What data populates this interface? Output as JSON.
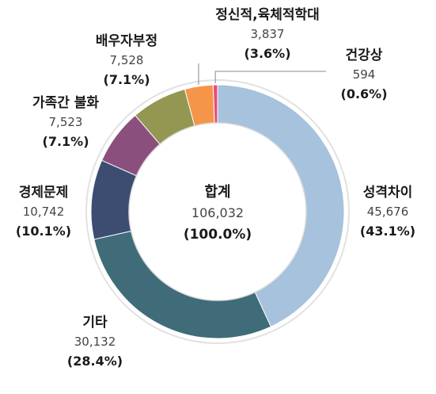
{
  "chart_data": {
    "type": "pie",
    "variant": "donut",
    "title": "",
    "categories": [
      "성격차이",
      "기타",
      "경제문제",
      "가족간 불화",
      "배우자부정",
      "정신적,육체적학대",
      "건강상"
    ],
    "values": [
      45676,
      30132,
      10742,
      7523,
      7528,
      3837,
      594
    ],
    "value_labels": [
      "45,676",
      "30,132",
      "10,742",
      "7,523",
      "7,528",
      "3,837",
      "594"
    ],
    "percent_labels": [
      "(43.1%)",
      "(28.4%)",
      "(10.1%)",
      "(7.1%)",
      "(7.1%)",
      "(3.6%)",
      "(0.6%)"
    ],
    "colors": [
      "#a6c2dc",
      "#3f6c78",
      "#3d4d72",
      "#8a4f7c",
      "#949752",
      "#f5954a",
      "#e94c7a"
    ],
    "start_angle_deg": 0,
    "direction": "clockwise",
    "center": {
      "name": "합계",
      "value": "106,032",
      "percent": "(100.0%)"
    }
  }
}
